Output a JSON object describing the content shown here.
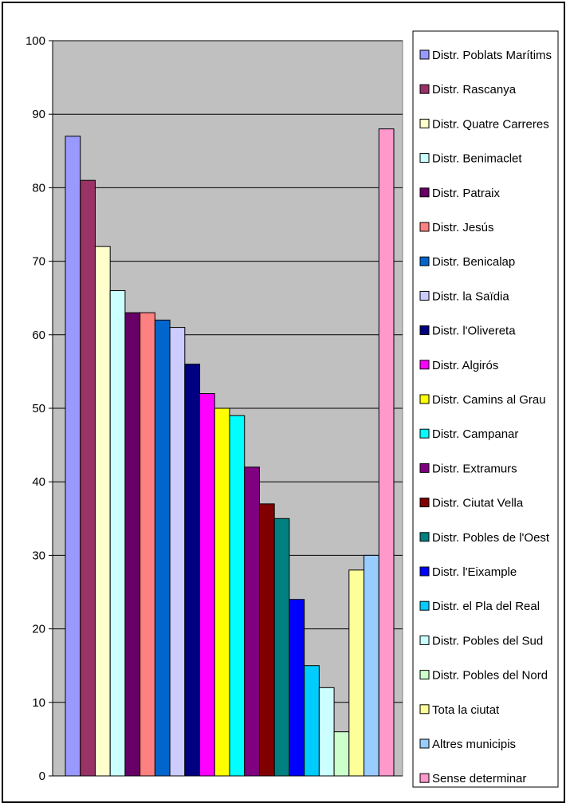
{
  "chart_data": {
    "type": "bar",
    "title": "",
    "xlabel": "",
    "ylabel": "",
    "ylim": [
      0,
      100
    ],
    "yticks": [
      0,
      10,
      20,
      30,
      40,
      50,
      60,
      70,
      80,
      90,
      100
    ],
    "grid": true,
    "legend_position": "right",
    "plot_background": "#c0c0c0",
    "categories": [
      "Distr. Poblats Marítims",
      "Distr. Rascanya",
      "Distr. Quatre Carreres",
      "Distr. Benimaclet",
      "Distr. Patraix",
      "Distr. Jesús",
      "Distr. Benicalap",
      "Distr. la Saïdia",
      "Distr. l'Olivereta",
      "Distr. Algirós",
      "Distr. Camins al Grau",
      "Distr. Campanar",
      "Distr. Extramurs",
      "Distr. Ciutat Vella",
      "Distr. Pobles de l'Oest",
      "Distr. l'Eixample",
      "Distr. el Pla del Real",
      "Distr. Pobles del Sud",
      "Distr. Pobles del Nord",
      "Tota la ciutat",
      "Altres municipis",
      "Sense determinar"
    ],
    "values": [
      87,
      81,
      72,
      66,
      63,
      63,
      62,
      61,
      56,
      52,
      50,
      49,
      42,
      37,
      35,
      24,
      15,
      12,
      6,
      28,
      30,
      88
    ],
    "colors": [
      "#9999ff",
      "#993366",
      "#ffffcc",
      "#ccffff",
      "#660066",
      "#ff8080",
      "#0066cc",
      "#ccccff",
      "#000080",
      "#ff00ff",
      "#ffff00",
      "#00ffff",
      "#800080",
      "#800000",
      "#008080",
      "#0000ff",
      "#00ccff",
      "#ccffff",
      "#ccffcc",
      "#ffff99",
      "#99ccff",
      "#ff99cc"
    ]
  }
}
